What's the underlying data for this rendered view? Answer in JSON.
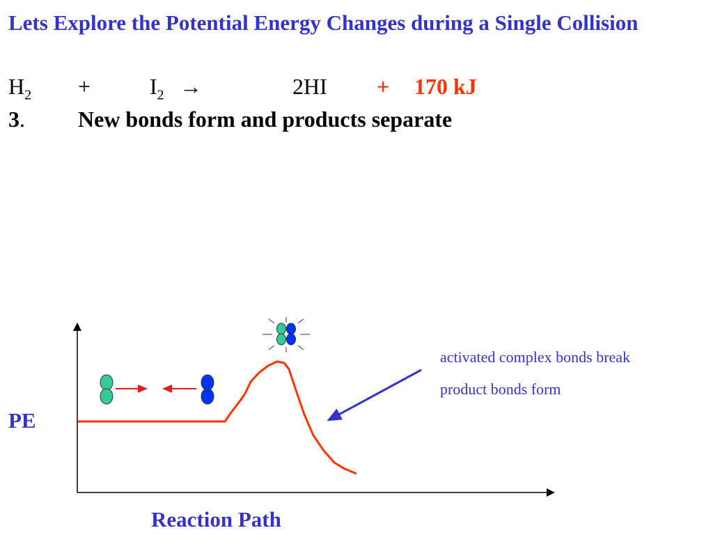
{
  "header": {
    "title": "Lets Explore the Potential Energy Changes during a Single Collision"
  },
  "equation": {
    "reactant1": "H",
    "reactant1_sub": "2",
    "plus1": "+",
    "reactant2": "I",
    "reactant2_sub": "2",
    "arrow": "→",
    "product": "2HI",
    "plus2": "+",
    "energy": "170 kJ"
  },
  "step": {
    "number": "3",
    "dot": ".",
    "text": "New bonds form and products separate"
  },
  "diagram": {
    "y_label": "PE",
    "x_label": "Reaction Path",
    "annotations": [
      "activated complex bonds break",
      "product bonds form"
    ]
  }
}
